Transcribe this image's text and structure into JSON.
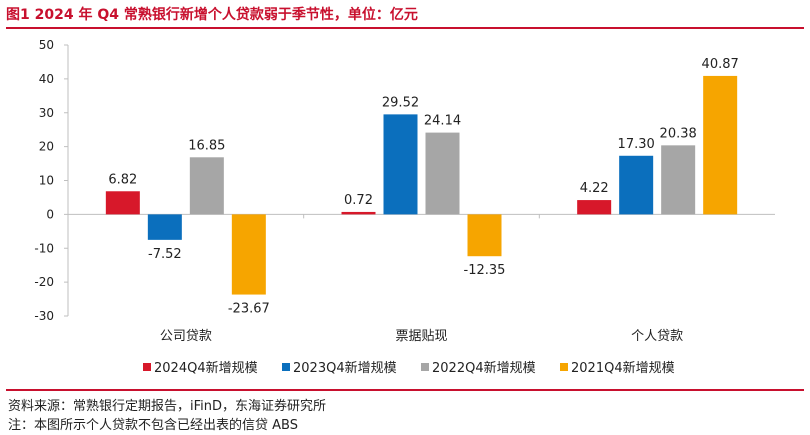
{
  "title": "图1  2024 年 Q4 常熟银行新增个人贷款弱于季节性，单位：亿元",
  "source": "资料来源：常熟银行定期报告，iFinD，东海证券研究所",
  "note": "注：本图所示个人贷款不包含已经出表的信贷 ABS",
  "colors": {
    "title": "#c8102e",
    "rule": "#c8102e",
    "axis": "#bfbfbf"
  },
  "chart_data": {
    "type": "bar",
    "title": "",
    "xlabel": "",
    "ylabel": "",
    "categories": [
      "公司贷款",
      "票据贴现",
      "个人贷款"
    ],
    "ylim": [
      -30,
      50
    ],
    "yticks": [
      50,
      40,
      30,
      20,
      10,
      0,
      -10,
      -20,
      -30
    ],
    "grid": false,
    "legend_position": "bottom",
    "series": [
      {
        "name": "2024Q4新增规模",
        "color": "#d7182a",
        "values": [
          6.82,
          0.72,
          4.22
        ],
        "labels": [
          "6.82",
          "0.72",
          "4.22"
        ]
      },
      {
        "name": "2023Q4新增规模",
        "color": "#0b6fbd",
        "values": [
          -7.52,
          29.52,
          17.3
        ],
        "labels": [
          "-7.52",
          "29.52",
          "17.30"
        ]
      },
      {
        "name": "2022Q4新增规模",
        "color": "#a6a6a6",
        "values": [
          16.85,
          24.14,
          20.38
        ],
        "labels": [
          "16.85",
          "24.14",
          "20.38"
        ]
      },
      {
        "name": "2021Q4新增规模",
        "color": "#f6a500",
        "values": [
          -23.67,
          -12.35,
          40.87
        ],
        "labels": [
          "-23.67",
          "-12.35",
          "40.87"
        ]
      }
    ]
  }
}
